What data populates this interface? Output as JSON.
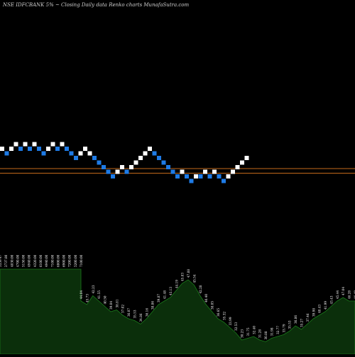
{
  "chart_data": {
    "type": "renko",
    "title": "NSE IDFCBANK 5% ~   Closing Daily data  Renko  charts MunafaSutra.com",
    "colors": {
      "background": "#000000",
      "up_brick": "#ffffff",
      "down_brick": "#1e7be6",
      "reference_line": "#c46a1a",
      "volume_fill": "#0b2f0b",
      "volume_line": "#1a7a1a",
      "label_text": "#ffffff"
    },
    "bricks": [
      {
        "dir": "up",
        "level": 0
      },
      {
        "dir": "down",
        "level": -1
      },
      {
        "dir": "up",
        "level": 0
      },
      {
        "dir": "up",
        "level": 1
      },
      {
        "dir": "down",
        "level": 0
      },
      {
        "dir": "up",
        "level": 1
      },
      {
        "dir": "down",
        "level": 0
      },
      {
        "dir": "up",
        "level": 1
      },
      {
        "dir": "down",
        "level": 0
      },
      {
        "dir": "down",
        "level": -1
      },
      {
        "dir": "up",
        "level": 0
      },
      {
        "dir": "up",
        "level": 1
      },
      {
        "dir": "down",
        "level": 0
      },
      {
        "dir": "up",
        "level": 1
      },
      {
        "dir": "down",
        "level": 0
      },
      {
        "dir": "down",
        "level": -1
      },
      {
        "dir": "down",
        "level": -2
      },
      {
        "dir": "up",
        "level": -1
      },
      {
        "dir": "up",
        "level": 0
      },
      {
        "dir": "up",
        "level": -1
      },
      {
        "dir": "down",
        "level": -2
      },
      {
        "dir": "down",
        "level": -3
      },
      {
        "dir": "down",
        "level": -4
      },
      {
        "dir": "down",
        "level": -5
      },
      {
        "dir": "down",
        "level": -6
      },
      {
        "dir": "up",
        "level": -5
      },
      {
        "dir": "up",
        "level": -4
      },
      {
        "dir": "down",
        "level": -5
      },
      {
        "dir": "up",
        "level": -4
      },
      {
        "dir": "up",
        "level": -3
      },
      {
        "dir": "up",
        "level": -2
      },
      {
        "dir": "up",
        "level": -1
      },
      {
        "dir": "up",
        "level": 0
      },
      {
        "dir": "down",
        "level": -1
      },
      {
        "dir": "down",
        "level": -2
      },
      {
        "dir": "down",
        "level": -3
      },
      {
        "dir": "down",
        "level": -4
      },
      {
        "dir": "down",
        "level": -5
      },
      {
        "dir": "down",
        "level": -6
      },
      {
        "dir": "up",
        "level": -5
      },
      {
        "dir": "down",
        "level": -6
      },
      {
        "dir": "down",
        "level": -7
      },
      {
        "dir": "up",
        "level": -6
      },
      {
        "dir": "down",
        "level": -6
      },
      {
        "dir": "up",
        "level": -5
      },
      {
        "dir": "down",
        "level": -6
      },
      {
        "dir": "up",
        "level": -5
      },
      {
        "dir": "down",
        "level": -6
      },
      {
        "dir": "down",
        "level": -7
      },
      {
        "dir": "up",
        "level": -6
      },
      {
        "dir": "up",
        "level": -5
      },
      {
        "dir": "up",
        "level": -4
      },
      {
        "dir": "up",
        "level": -3
      },
      {
        "dir": "up",
        "level": -2
      }
    ],
    "reference_lines": [
      -4.3,
      -5.3
    ],
    "volume_levels": [
      1,
      1,
      1,
      1,
      1,
      1,
      1,
      1,
      1,
      1,
      1,
      1,
      1,
      1,
      1,
      0.3,
      0.28,
      0.33,
      0.3,
      0.27,
      0.24,
      0.25,
      0.22,
      0.2,
      0.19,
      0.17,
      0.2,
      0.24,
      0.28,
      0.3,
      0.32,
      0.36,
      0.4,
      0.42,
      0.39,
      0.33,
      0.28,
      0.24,
      0.2,
      0.18,
      0.15,
      0.12,
      0.08,
      0.09,
      0.1,
      0.08,
      0.07,
      0.09,
      0.1,
      0.11,
      0.13,
      0.16,
      0.14,
      0.17,
      0.2,
      0.22,
      0.24,
      0.27,
      0.3,
      0.32,
      0.3,
      0.3
    ],
    "volume_labels": [
      "3359.47",
      "2737.80",
      "4030.00",
      "4700.00",
      "5150.00",
      "4940.00",
      "4320.00",
      "6100.00",
      "4940.00",
      "7100.00",
      "6800.00",
      "6900.00",
      "7200.00",
      "5200.00",
      "7100.00",
      "44.04",
      "45.73",
      "42.23",
      "41.55",
      "40.50",
      "39.04",
      "38.81",
      "37.02",
      "36.07",
      "35.53",
      "34.86",
      "36.16",
      "38.86",
      "39.87",
      "41.48",
      "43.13",
      "44.19",
      "45.83",
      "47.88",
      "45.54",
      "42.28",
      "40.40",
      "38.05",
      "36.65",
      "35.32",
      "33.99",
      "32.53",
      "30.23",
      "31.75",
      "32.40",
      "31.28",
      "30.88",
      "31.98",
      "32.77",
      "33.79",
      "35.53",
      "36.86",
      "35.27",
      "37.46",
      "39.98",
      "40.43",
      "41.99",
      "43.43",
      "45.44",
      "47.04",
      "46.28",
      "46.49"
    ]
  }
}
